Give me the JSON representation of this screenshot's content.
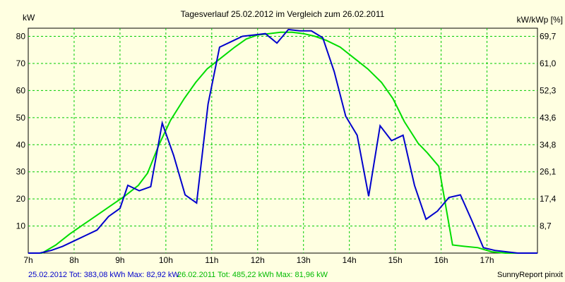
{
  "chart_data": {
    "type": "line",
    "title": "Tagesverlauf 25.02.2012 im Vergleich zum 26.02.2011",
    "ylabel_left": "kW",
    "ylabel_right": "kW/kWp [%]",
    "x_ticks": [
      "7h",
      "8h",
      "9h",
      "10h",
      "11h",
      "12h",
      "13h",
      "14h",
      "15h",
      "16h",
      "17h"
    ],
    "xlim": [
      7,
      18.1
    ],
    "ylim": [
      0,
      83
    ],
    "y_ticks": [
      10,
      20,
      30,
      40,
      50,
      60,
      70,
      80
    ],
    "y_right_ticks": [
      "8,7",
      "17,4",
      "26,1",
      "34,8",
      "43,6",
      "52,3",
      "61,0",
      "69,7"
    ],
    "grid": true,
    "series": [
      {
        "name": "25.02.2012",
        "color": "#0000cc",
        "points": [
          [
            7.0,
            0
          ],
          [
            7.25,
            0
          ],
          [
            7.5,
            1
          ],
          [
            7.75,
            2.5
          ],
          [
            8.0,
            4.5
          ],
          [
            8.25,
            6.5
          ],
          [
            8.5,
            8.5
          ],
          [
            8.75,
            13.5
          ],
          [
            9.0,
            16.5
          ],
          [
            9.17,
            25
          ],
          [
            9.42,
            23
          ],
          [
            9.67,
            24.5
          ],
          [
            9.92,
            48
          ],
          [
            10.17,
            36
          ],
          [
            10.42,
            21.5
          ],
          [
            10.67,
            18.5
          ],
          [
            10.92,
            55
          ],
          [
            11.17,
            76
          ],
          [
            11.42,
            78
          ],
          [
            11.67,
            80
          ],
          [
            11.92,
            80.5
          ],
          [
            12.17,
            81
          ],
          [
            12.42,
            77.5
          ],
          [
            12.67,
            82.5
          ],
          [
            12.92,
            82
          ],
          [
            13.17,
            82
          ],
          [
            13.42,
            79.5
          ],
          [
            13.67,
            67
          ],
          [
            13.92,
            50.5
          ],
          [
            14.17,
            43.5
          ],
          [
            14.42,
            21
          ],
          [
            14.67,
            47
          ],
          [
            14.92,
            41.5
          ],
          [
            15.17,
            43.5
          ],
          [
            15.42,
            25
          ],
          [
            15.67,
            12.5
          ],
          [
            15.92,
            15.5
          ],
          [
            16.17,
            20.5
          ],
          [
            16.42,
            21.5
          ],
          [
            16.67,
            12
          ],
          [
            16.92,
            2
          ],
          [
            17.17,
            1
          ],
          [
            17.42,
            0.5
          ],
          [
            17.67,
            0
          ],
          [
            18.1,
            0
          ]
        ]
      },
      {
        "name": "26.02.2011",
        "color": "#00dd00",
        "points": [
          [
            7.0,
            0
          ],
          [
            7.3,
            0
          ],
          [
            7.6,
            3
          ],
          [
            7.9,
            7
          ],
          [
            8.2,
            10.5
          ],
          [
            8.5,
            14
          ],
          [
            8.8,
            17.5
          ],
          [
            9.1,
            21
          ],
          [
            9.4,
            25
          ],
          [
            9.6,
            29.5
          ],
          [
            9.85,
            40
          ],
          [
            10.1,
            49
          ],
          [
            10.4,
            57
          ],
          [
            10.65,
            63
          ],
          [
            10.9,
            68
          ],
          [
            11.2,
            72
          ],
          [
            11.5,
            76
          ],
          [
            11.75,
            79
          ],
          [
            12.0,
            80.5
          ],
          [
            12.25,
            81
          ],
          [
            12.5,
            81.5
          ],
          [
            12.75,
            81.5
          ],
          [
            13.0,
            81
          ],
          [
            13.25,
            80
          ],
          [
            13.5,
            78.5
          ],
          [
            13.8,
            76
          ],
          [
            14.1,
            72
          ],
          [
            14.4,
            68
          ],
          [
            14.7,
            63
          ],
          [
            14.95,
            57
          ],
          [
            15.2,
            48.5
          ],
          [
            15.5,
            40.5
          ],
          [
            15.7,
            37
          ],
          [
            15.95,
            32
          ],
          [
            16.25,
            3
          ],
          [
            16.5,
            2.5
          ],
          [
            16.8,
            2
          ],
          [
            17.1,
            0.5
          ],
          [
            17.4,
            0
          ],
          [
            18.1,
            0
          ]
        ]
      }
    ],
    "footer": {
      "series1": "25.02.2012 Tot: 383,08 kWh Max: 82,92 kW",
      "series2": "26.02.2011 Tot: 485,22 kWh Max: 81,96 kW",
      "credit": "SunnyReport pinxit"
    }
  },
  "colors": {
    "background": "#ffffe1",
    "grid": "#00cc00",
    "series1": "#0000cc",
    "series2": "#00dd00"
  }
}
